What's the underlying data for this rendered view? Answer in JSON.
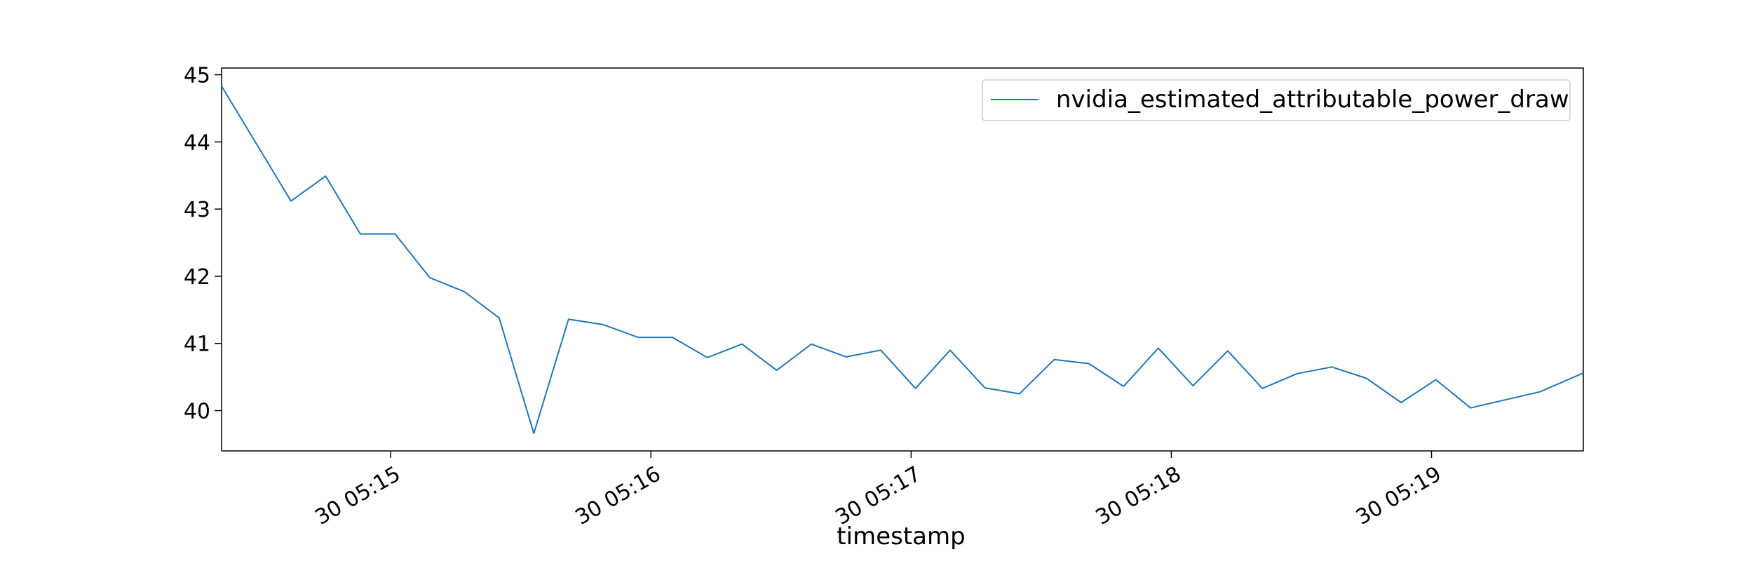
{
  "chart_data": {
    "type": "line",
    "title": "",
    "xlabel": "timestamp",
    "ylabel": "",
    "ylim": [
      39.4,
      45.1
    ],
    "xlim": [
      "05:14:21",
      "05:19:35"
    ],
    "grid": false,
    "legend_position": "top-right",
    "x_ticks": [
      "05:15:00",
      "05:16:00",
      "05:17:00",
      "05:18:00",
      "05:19:00"
    ],
    "x_tick_labels": [
      "30 05:15",
      "30 05:16",
      "30 05:17",
      "30 05:18",
      "30 05:19"
    ],
    "y_ticks": [
      40,
      41,
      42,
      43,
      44,
      45
    ],
    "y_tick_labels": [
      "40",
      "41",
      "42",
      "43",
      "44",
      "45"
    ],
    "colors": {
      "series": "#1f77b4",
      "axes": "#000000",
      "legend_border": "#cccccc"
    },
    "series": [
      {
        "name": "nvidia_estimated_attributable_power_draw",
        "x": [
          "05:14:21",
          "05:14:37",
          "05:14:37",
          "05:14:45",
          "05:14:53",
          "05:15:01",
          "05:15:09",
          "05:15:17",
          "05:15:25",
          "05:15:33",
          "05:15:41",
          "05:15:49",
          "05:15:57",
          "05:16:05",
          "05:16:13",
          "05:16:21",
          "05:16:29",
          "05:16:37",
          "05:16:45",
          "05:16:53",
          "05:17:01",
          "05:17:09",
          "05:17:17",
          "05:17:25",
          "05:17:33",
          "05:17:41",
          "05:17:49",
          "05:17:57",
          "05:18:05",
          "05:18:13",
          "05:18:21",
          "05:18:29",
          "05:18:37",
          "05:18:45",
          "05:18:53",
          "05:19:01",
          "05:19:09",
          "05:19:17",
          "05:19:25",
          "05:19:35"
        ],
        "y": [
          44.83,
          43.12,
          43.12,
          43.49,
          42.63,
          42.63,
          41.98,
          41.77,
          41.38,
          39.66,
          41.36,
          41.28,
          41.09,
          41.09,
          40.79,
          40.99,
          40.6,
          40.99,
          40.8,
          40.9,
          40.33,
          40.9,
          40.34,
          40.25,
          40.76,
          40.7,
          40.36,
          40.93,
          40.37,
          40.89,
          40.33,
          40.55,
          40.65,
          40.48,
          40.12,
          40.46,
          40.04,
          40.16,
          40.28,
          40.56
        ]
      }
    ]
  }
}
